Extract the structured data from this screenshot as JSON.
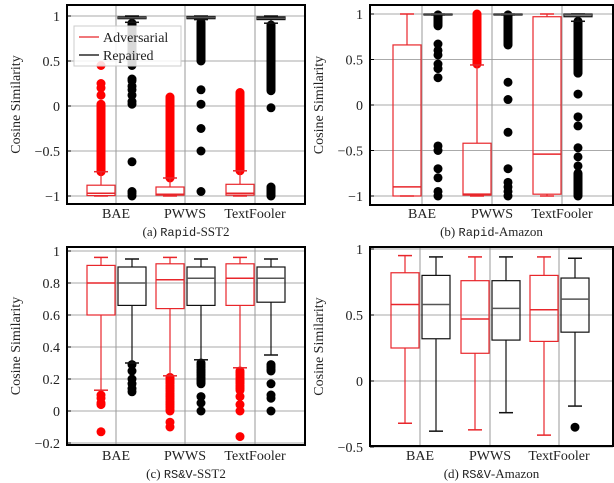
{
  "chart_data": [
    {
      "type": "box",
      "caption": {
        "prefix": "(a) ",
        "mono": "Rapid",
        "suffix": "-SST2"
      },
      "ylabel": "Cosine Similarity",
      "ylim": [
        -1.08,
        1.08
      ],
      "yticks": [
        -1,
        -0.5,
        0,
        0.5,
        1
      ],
      "ytick_labels": [
        "−1",
        "−0.5",
        "0",
        "0.5",
        "1"
      ],
      "grid": true,
      "categories": [
        "BAE",
        "PWWS",
        "TextFooler"
      ],
      "legend": {
        "placement": "top-left",
        "entries": [
          "Adversarial",
          "Repaired"
        ]
      },
      "series": [
        {
          "name": "Adversarial",
          "color": "#e8262b",
          "boxes": [
            {
              "whislo": -1.0,
              "q1": -0.995,
              "med": -0.97,
              "q3": -0.88,
              "whishi": -0.73,
              "outlier_ranges": [
                [
                  -0.73,
                  0.02
                ]
              ],
              "outliers": [
                0.12,
                0.2,
                0.25,
                0.45
              ]
            },
            {
              "whislo": -1.0,
              "q1": -0.99,
              "med": -0.98,
              "q3": -0.9,
              "whishi": -0.8,
              "outlier_ranges": [
                [
                  -0.8,
                  0.1
                ]
              ],
              "outliers": []
            },
            {
              "whislo": -1.0,
              "q1": -0.99,
              "med": -0.97,
              "q3": -0.87,
              "whishi": -0.72,
              "outlier_ranges": [
                [
                  -0.72,
                  0.15
                ]
              ],
              "outliers": []
            }
          ]
        },
        {
          "name": "Repaired",
          "color": "#000000",
          "boxes": [
            {
              "whislo": 0.93,
              "q1": 0.97,
              "med": 0.98,
              "q3": 0.99,
              "whishi": 1.0,
              "outlier_ranges": [
                [
                  0.45,
                  0.92
                ]
              ],
              "outliers": [
                0.3,
                0.28,
                0.22,
                0.18,
                0.12,
                0.05,
                0.02,
                -0.62,
                -0.95,
                -0.97,
                -1.0
              ]
            },
            {
              "whislo": 0.96,
              "q1": 0.97,
              "med": 0.985,
              "q3": 0.995,
              "whishi": 1.0,
              "outlier_ranges": [
                [
                  0.5,
                  0.93
                ]
              ],
              "outliers": [
                0.18,
                0.02,
                -0.25,
                -0.5,
                -0.95
              ]
            },
            {
              "whislo": 0.92,
              "q1": 0.96,
              "med": 0.975,
              "q3": 0.99,
              "whishi": 1.0,
              "outlier_ranges": [
                [
                  0.17,
                  0.9
                ],
                [
                  -1.0,
                  -0.9
                ]
              ],
              "outliers": [
                -0.02
              ]
            }
          ]
        }
      ]
    },
    {
      "type": "box",
      "caption": {
        "prefix": "(b) ",
        "mono": "Rapid",
        "suffix": "-Amazon"
      },
      "ylabel": "Cosine Similarity",
      "ylim": [
        -1.08,
        1.08
      ],
      "yticks": [
        -1,
        -0.5,
        0,
        0.5,
        1
      ],
      "ytick_labels": [
        "−1",
        "−0.5",
        "0",
        "0.5",
        "1"
      ],
      "grid": true,
      "categories": [
        "BAE",
        "PWWS",
        "TextFooler"
      ],
      "series": [
        {
          "name": "Adversarial",
          "color": "#e8262b",
          "boxes": [
            {
              "whislo": -1.0,
              "q1": -1.0,
              "med": -0.9,
              "q3": 0.66,
              "whishi": 1.0,
              "outlier_ranges": [],
              "outliers": []
            },
            {
              "whislo": -1.0,
              "q1": -0.99,
              "med": -0.98,
              "q3": -0.42,
              "whishi": 0.44,
              "outlier_ranges": [
                [
                  0.45,
                  1.0
                ]
              ],
              "outliers": []
            },
            {
              "whislo": -1.0,
              "q1": -0.98,
              "med": -0.54,
              "q3": 0.97,
              "whishi": 1.0,
              "outlier_ranges": [],
              "outliers": []
            }
          ]
        },
        {
          "name": "Repaired",
          "color": "#000000",
          "boxes": [
            {
              "whislo": 0.99,
              "q1": 0.99,
              "med": 1.0,
              "q3": 1.0,
              "whishi": 1.0,
              "outlier_ranges": [
                [
                  0.87,
                  0.99
                ]
              ],
              "outliers": [
                0.67,
                0.6,
                0.55,
                0.45,
                0.4,
                0.3,
                -0.45,
                -0.5,
                -0.7,
                -0.8,
                -0.95,
                -1.0
              ]
            },
            {
              "whislo": 0.99,
              "q1": 0.99,
              "med": 1.0,
              "q3": 1.0,
              "whishi": 1.0,
              "outlier_ranges": [
                [
                  0.66,
                  0.99
                ]
              ],
              "outliers": [
                0.25,
                0.06,
                -0.3,
                -0.7,
                -0.85,
                -0.9,
                -0.95,
                -1.0
              ]
            },
            {
              "whislo": 0.92,
              "q1": 0.97,
              "med": 0.99,
              "q3": 1.0,
              "whishi": 1.0,
              "outlier_ranges": [
                [
                  0.35,
                  0.92
                ],
                [
                  -1.0,
                  -0.75
                ]
              ],
              "outliers": [
                0.12,
                -0.13,
                -0.23,
                -0.47,
                -0.57,
                -0.67
              ]
            }
          ]
        }
      ]
    },
    {
      "type": "box",
      "caption": {
        "prefix": "(c) ",
        "mono": "RS&V",
        "suffix": "-SST2"
      },
      "ylabel": "Cosine Similarity",
      "ylim": [
        -0.21,
        1.03
      ],
      "yticks": [
        -0.2,
        0,
        0.2,
        0.4,
        0.6,
        0.8,
        1
      ],
      "ytick_labels": [
        "−0.2",
        "0",
        "0.2",
        "0.4",
        "0.6",
        "0.8",
        "1"
      ],
      "grid": true,
      "categories": [
        "BAE",
        "PWWS",
        "TextFooler"
      ],
      "series": [
        {
          "name": "Adversarial",
          "color": "#e8262b",
          "boxes": [
            {
              "whislo": 0.13,
              "q1": 0.6,
              "med": 0.8,
              "q3": 0.91,
              "whishi": 0.96,
              "outlier_ranges": [],
              "outliers": [
                0.1,
                0.08,
                0.05,
                0.04,
                -0.13
              ]
            },
            {
              "whislo": 0.22,
              "q1": 0.64,
              "med": 0.82,
              "q3": 0.92,
              "whishi": 0.96,
              "outlier_ranges": [
                [
                  0.0,
                  0.21
                ]
              ],
              "outliers": [
                -0.07,
                -0.1
              ]
            },
            {
              "whislo": 0.27,
              "q1": 0.66,
              "med": 0.83,
              "q3": 0.92,
              "whishi": 0.96,
              "outlier_ranges": [
                [
                  0.13,
                  0.25
                ]
              ],
              "outliers": [
                0.09,
                0.04,
                0.0,
                -0.16
              ]
            }
          ]
        },
        {
          "name": "Repaired",
          "color": "#000000",
          "boxes": [
            {
              "whislo": 0.3,
              "q1": 0.66,
              "med": 0.8,
              "q3": 0.9,
              "whishi": 0.95,
              "outlier_ranges": [],
              "outliers": [
                0.29,
                0.25,
                0.2,
                0.17,
                0.14,
                0.12
              ]
            },
            {
              "whislo": 0.32,
              "q1": 0.66,
              "med": 0.83,
              "q3": 0.9,
              "whishi": 0.95,
              "outlier_ranges": [
                [
                  0.17,
                  0.3
                ]
              ],
              "outliers": [
                0.09,
                0.05,
                0.0
              ]
            },
            {
              "whislo": 0.35,
              "q1": 0.68,
              "med": 0.83,
              "q3": 0.9,
              "whishi": 0.95,
              "outlier_ranges": [
                [
                  0.25,
                  0.29
                ]
              ],
              "outliers": [
                0.17,
                0.1,
                0.08,
                0.0
              ]
            }
          ]
        }
      ]
    },
    {
      "type": "box",
      "caption": {
        "prefix": "(d) ",
        "mono": "RS&V",
        "suffix": "-Amazon"
      },
      "ylabel": "Cosine Similarity",
      "ylim": [
        -0.5,
        1.0
      ],
      "yticks": [
        -0.5,
        0,
        0.5,
        1
      ],
      "ytick_labels": [
        "−0.5",
        "0",
        "0.5",
        "1"
      ],
      "grid": true,
      "categories": [
        "BAE",
        "PWWS",
        "TextFooler"
      ],
      "series": [
        {
          "name": "Adversarial",
          "color": "#e8262b",
          "boxes": [
            {
              "whislo": -0.32,
              "q1": 0.25,
              "med": 0.58,
              "q3": 0.82,
              "whishi": 0.95,
              "outlier_ranges": [],
              "outliers": []
            },
            {
              "whislo": -0.37,
              "q1": 0.21,
              "med": 0.47,
              "q3": 0.76,
              "whishi": 0.94,
              "outlier_ranges": [],
              "outliers": []
            },
            {
              "whislo": -0.41,
              "q1": 0.3,
              "med": 0.54,
              "q3": 0.8,
              "whishi": 0.94,
              "outlier_ranges": [],
              "outliers": []
            }
          ]
        },
        {
          "name": "Repaired",
          "color": "#000000",
          "boxes": [
            {
              "whislo": -0.38,
              "q1": 0.32,
              "med": 0.58,
              "q3": 0.8,
              "whishi": 0.94,
              "outlier_ranges": [],
              "outliers": []
            },
            {
              "whislo": -0.24,
              "q1": 0.31,
              "med": 0.55,
              "q3": 0.76,
              "whishi": 0.94,
              "outlier_ranges": [],
              "outliers": []
            },
            {
              "whislo": -0.19,
              "q1": 0.37,
              "med": 0.62,
              "q3": 0.78,
              "whishi": 0.93,
              "outlier_ranges": [],
              "outliers": [
                -0.35
              ]
            }
          ]
        }
      ]
    }
  ]
}
